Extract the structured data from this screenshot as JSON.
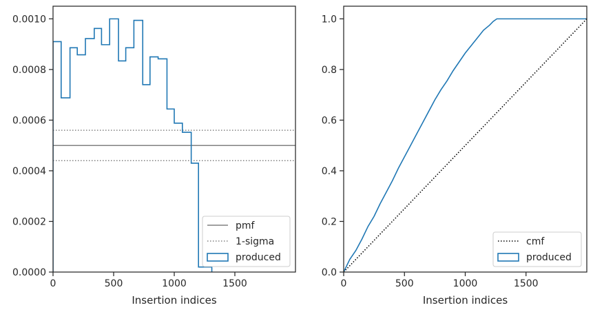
{
  "chart_data": [
    {
      "type": "histogram-step",
      "xlabel": "Insertion indices",
      "ylabel": "",
      "xlim": [
        0,
        2000
      ],
      "ylim": [
        0,
        0.00105
      ],
      "xticks": [
        0,
        500,
        1000,
        1500
      ],
      "xtick_labels": [
        "0",
        "500",
        "1000",
        "1500"
      ],
      "yticks": [
        0,
        0.0002,
        0.0004,
        0.0006,
        0.0008,
        0.001
      ],
      "ytick_labels": [
        "0.0000",
        "0.0002",
        "0.0004",
        "0.0006",
        "0.0008",
        "0.0010"
      ],
      "series": [
        {
          "name": "produced",
          "color": "#1f77b4",
          "bin_edges": [
            0,
            67,
            140,
            200,
            267,
            340,
            400,
            467,
            540,
            600,
            667,
            740,
            800,
            867,
            940,
            1000,
            1067,
            1140,
            1200,
            1267,
            1310
          ],
          "values": [
            0.00091,
            0.000688,
            0.000886,
            0.000858,
            0.000922,
            0.000962,
            0.000898,
            0.001,
            0.000834,
            0.000886,
            0.000994,
            0.00074,
            0.00085,
            0.000842,
            0.000644,
            0.000588,
            0.000552,
            0.00043,
            2e-05,
            2e-05
          ]
        }
      ],
      "reference_lines": [
        {
          "name": "pmf",
          "y": 0.0005,
          "style": "solid",
          "color": "#808080"
        },
        {
          "name": "1-sigma",
          "y": 0.00056,
          "style": "dotted",
          "color": "#808080"
        },
        {
          "name": "1-sigma-lower",
          "y": 0.00044,
          "style": "dotted",
          "color": "#808080"
        }
      ],
      "legend": {
        "placement": "lower-right",
        "entries": [
          {
            "label": "pmf",
            "kind": "line-solid",
            "color": "#808080"
          },
          {
            "label": "1-sigma",
            "kind": "line-dotted",
            "color": "#808080"
          },
          {
            "label": "produced",
            "kind": "patch",
            "color": "#1f77b4"
          }
        ]
      },
      "grid": false
    },
    {
      "type": "line",
      "xlabel": "Insertion indices",
      "ylabel": "",
      "xlim": [
        0,
        2000
      ],
      "ylim": [
        0,
        1.05
      ],
      "xticks": [
        0,
        500,
        1000,
        1500
      ],
      "xtick_labels": [
        "0",
        "500",
        "1000",
        "1500"
      ],
      "yticks": [
        0,
        0.2,
        0.4,
        0.6,
        0.8,
        1.0
      ],
      "ytick_labels": [
        "0.0",
        "0.2",
        "0.4",
        "0.6",
        "0.8",
        "1.0"
      ],
      "series": [
        {
          "name": "produced",
          "color": "#1f77b4",
          "style": "solid",
          "x": [
            0,
            50,
            100,
            150,
            200,
            250,
            300,
            350,
            400,
            450,
            500,
            550,
            600,
            650,
            700,
            750,
            800,
            850,
            900,
            950,
            1000,
            1050,
            1100,
            1150,
            1200,
            1230,
            1260,
            1300,
            1400,
            1600,
            1800,
            2000
          ],
          "y": [
            0,
            0.05,
            0.085,
            0.13,
            0.18,
            0.22,
            0.27,
            0.315,
            0.36,
            0.41,
            0.455,
            0.5,
            0.545,
            0.59,
            0.635,
            0.68,
            0.72,
            0.755,
            0.795,
            0.83,
            0.865,
            0.895,
            0.925,
            0.955,
            0.975,
            0.99,
            1.0,
            1.0,
            1.0,
            1.0,
            1.0,
            1.0
          ]
        },
        {
          "name": "cmf",
          "color": "#000000",
          "style": "dotted",
          "x": [
            0,
            2000
          ],
          "y": [
            0,
            1.0
          ]
        }
      ],
      "legend": {
        "placement": "lower-right",
        "entries": [
          {
            "label": "cmf",
            "kind": "line-dotted",
            "color": "#000000"
          },
          {
            "label": "produced",
            "kind": "patch",
            "color": "#1f77b4"
          }
        ]
      },
      "grid": false
    }
  ]
}
